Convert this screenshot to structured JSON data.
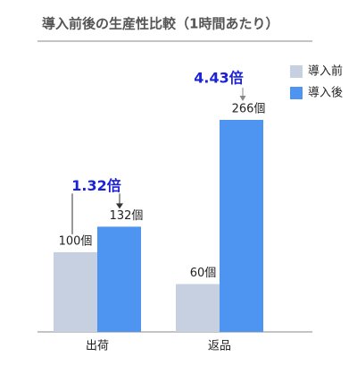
{
  "chart_data": {
    "type": "bar",
    "title": "導入前後の生産性比較（1時間あたり）",
    "categories": [
      "出荷",
      "返品"
    ],
    "series": [
      {
        "name": "導入前",
        "color": "#c6d0e0",
        "values": [
          100,
          60
        ],
        "value_labels": [
          "100個",
          "60個"
        ]
      },
      {
        "name": "導入後",
        "color": "#4e95f2",
        "values": [
          132,
          266
        ],
        "value_labels": [
          "132個",
          "266個"
        ]
      }
    ],
    "annotations": [
      "1.32倍",
      "4.43倍"
    ],
    "annotation_color": "#1c22d8"
  }
}
